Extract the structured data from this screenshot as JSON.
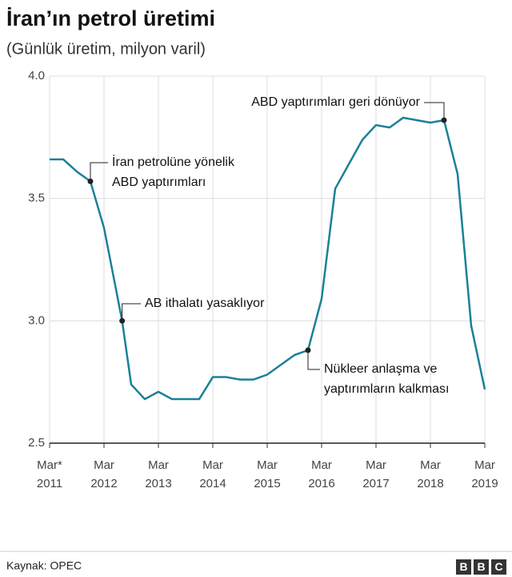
{
  "chart_data": {
    "type": "line",
    "title": "İran’ın petrol üretimi",
    "subtitle": "(Günlük üretim, milyon varil)",
    "source": "Kaynak: OPEC",
    "logo": [
      "B",
      "B",
      "C"
    ],
    "x": [
      "2011-03",
      "2011-06",
      "2011-09",
      "2011-12",
      "2012-03",
      "2012-07",
      "2012-09",
      "2012-12",
      "2013-03",
      "2013-06",
      "2013-09",
      "2013-12",
      "2014-03",
      "2014-06",
      "2014-09",
      "2014-12",
      "2015-03",
      "2015-06",
      "2015-09",
      "2015-12",
      "2016-03",
      "2016-06",
      "2016-09",
      "2016-12",
      "2017-03",
      "2017-06",
      "2017-09",
      "2017-12",
      "2018-03",
      "2018-06",
      "2018-09",
      "2018-12",
      "2019-03"
    ],
    "series": [
      {
        "name": "Günlük üretim",
        "color": "#1b8098",
        "values": [
          3.66,
          3.66,
          3.61,
          3.57,
          3.38,
          3.0,
          2.74,
          2.68,
          2.71,
          2.68,
          2.68,
          2.68,
          2.77,
          2.77,
          2.76,
          2.76,
          2.78,
          2.82,
          2.86,
          2.88,
          3.09,
          3.54,
          3.64,
          3.74,
          3.8,
          3.79,
          3.83,
          3.82,
          3.81,
          3.82,
          3.6,
          2.98,
          2.72
        ]
      }
    ],
    "ylim": [
      2.5,
      4.0
    ],
    "yticks": [
      2.5,
      {
        "value": 3,
        "label": "3.0"
      },
      3.5,
      {
        "value": 4,
        "label": "4.0"
      }
    ],
    "xlim": [
      "2011-03",
      "2019-03"
    ],
    "xticks": [
      {
        "value": "2011-03",
        "label": "Mar* 2011"
      },
      {
        "value": "2012-03",
        "label": "Mar 2012"
      },
      {
        "value": "2013-03",
        "label": "Mar 2013"
      },
      {
        "value": "2014-03",
        "label": "Mar 2014"
      },
      {
        "value": "2015-03",
        "label": "Mar 2015"
      },
      {
        "value": "2016-03",
        "label": "Mar 2016"
      },
      {
        "value": "2017-03",
        "label": "Mar 2017"
      },
      {
        "value": "2018-03",
        "label": "Mar 2018"
      },
      {
        "value": "2019-03",
        "label": "Mar 2019"
      }
    ],
    "grid": true,
    "annotations": [
      {
        "x": "2011-12",
        "y": 3.57,
        "text": [
          "İran petrolüne yönelik",
          "ABD yaptırımları"
        ]
      },
      {
        "x": "2012-07",
        "y": 3.0,
        "text": [
          "AB ithalatı yasaklıyor"
        ]
      },
      {
        "x": "2015-12",
        "y": 2.88,
        "text": [
          "Nükleer anlaşma ve",
          "yaptırımların kalkması"
        ]
      },
      {
        "x": "2018-06",
        "y": 3.82,
        "text": [
          "ABD yaptırımları geri dönüyor"
        ]
      }
    ]
  }
}
